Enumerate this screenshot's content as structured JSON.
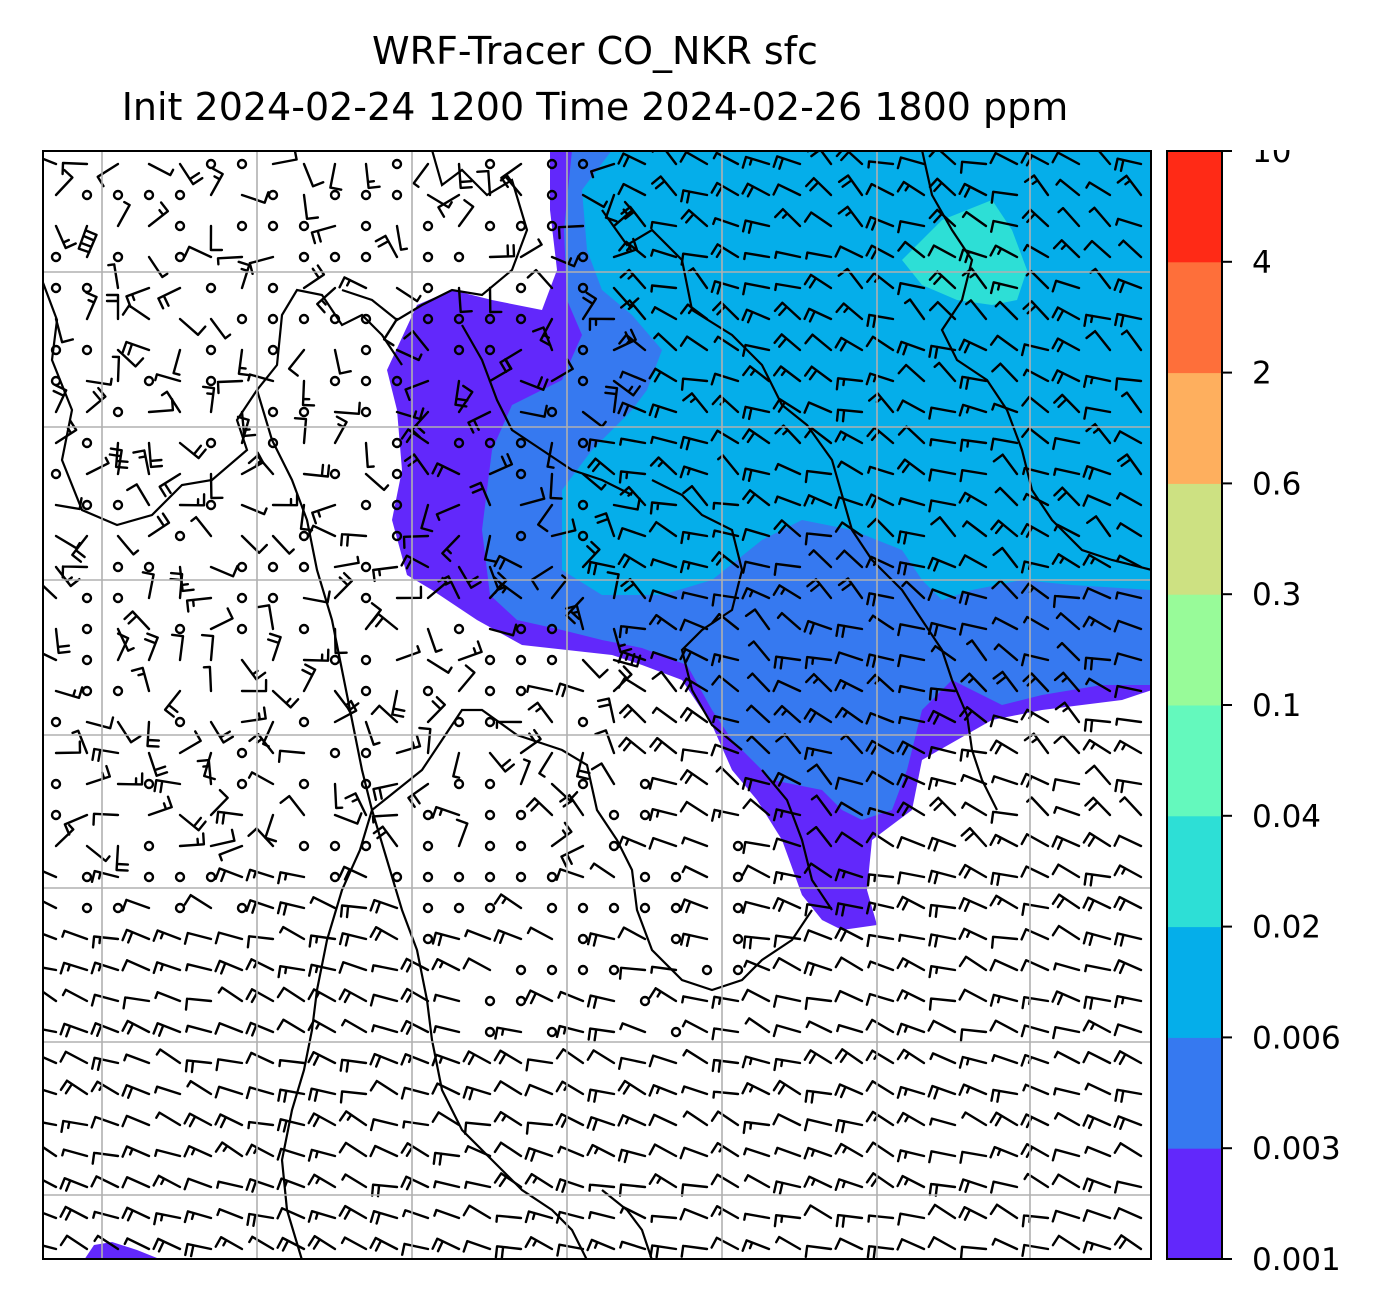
{
  "title": {
    "line1": "WRF-Tracer CO_NKR sfc",
    "line2": "Init 2024-02-24 1200 Time 2024-02-26 1800 ppm"
  },
  "colorbar": {
    "levels": [
      "0.001",
      "0.003",
      "0.006",
      "0.02",
      "0.04",
      "0.1",
      "0.3",
      "0.6",
      "2",
      "4",
      "10"
    ],
    "colors": [
      "#6228fb",
      "#3679f0",
      "#05aeea",
      "#2ddfd6",
      "#64f9bd",
      "#98fb99",
      "#cde182",
      "#feaf5e",
      "#fe6f3a",
      "#ff2a16"
    ]
  },
  "map": {
    "frame_color": "#000000",
    "grid_color": "#b0b0b0",
    "coastline_color": "#000000",
    "barb_color": "#000000"
  }
}
